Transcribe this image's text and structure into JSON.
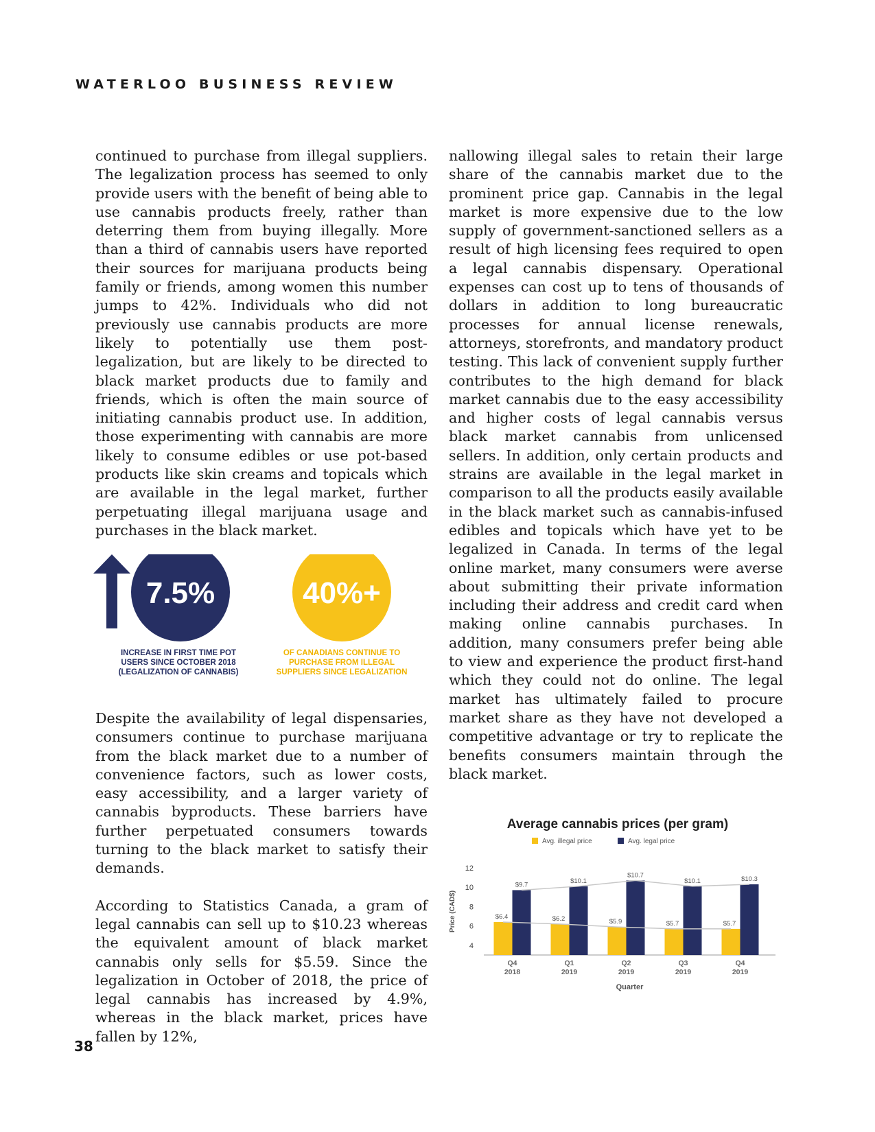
{
  "header": {
    "publication": "WATERLOO BUSINESS REVIEW"
  },
  "page_number": "38",
  "left_column_top": "continued to purchase from illegal suppliers. The legalization process has seemed to only provide users with the benefit of being able to use cannabis products freely, rather than deterring them from buying illegally. More than a third of cannabis users have reported their sources for marijuana products being family or friends, among women this number jumps to 42%. Individuals who did not previously use cannabis products are more likely to potentially use them post-legalization, but are likely to be directed to black market products due to family and friends, which is often the main source of initiating cannabis product use. In addition, those experimenting with cannabis are more likely to consume edibles or use pot-based products like skin creams and topicals which are available in the legal market, further perpetuating illegal marijuana usage and purchases in the black market.",
  "left_column_bottom": [
    "Despite the availability of legal dispensaries, consumers continue to purchase marijuana from the black market due to a number of convenience factors, such as lower costs, easy accessibility, and a larger variety of cannabis byproducts. These barriers have further perpetuated consumers towards turning to the black market to satisfy their demands.",
    "According to Statistics Canada, a gram of legal cannabis can sell up to $10.23 whereas the equivalent amount of black market cannabis only sells for $5.59. Since the legalization in October of 2018, the price of legal cannabis has increased by 4.9%, whereas in the black market, prices have fallen by 12%,"
  ],
  "right_column": "nallowing illegal sales to retain their large share of the cannabis market due to the prominent price gap. Cannabis in the legal market is more expensive due to the low supply of government-sanctioned sellers as a result of high licensing fees required to open a legal cannabis dispensary. Operational expenses can cost up to tens of thousands of dollars in addition to long bureaucratic processes for annual license renewals, attorneys, storefronts, and mandatory product testing. This lack of convenient supply further contributes to the high demand for black market cannabis due to the easy accessibility and higher costs of legal cannabis versus black market cannabis from unlicensed sellers. In addition, only certain products and strains are available in the legal market in comparison to all the products easily available in the black market such as cannabis-infused edibles and topicals which have yet to be legalized in Canada. In terms of the legal online market, many consumers were averse about submitting their private information including their address and credit card when making online cannabis purchases. In addition, many consumers prefer being able to view and experience the product first-hand which they could not do online. The legal market has ultimately failed to procure market share as they have not developed a competitive advantage or try to replicate the benefits consumers maintain through the black market.",
  "stats": [
    {
      "value": "7.5%",
      "caption_lines": [
        "INCREASE IN FIRST TIME POT",
        "USERS SINCE OCTOBER 2018",
        "(LEGALIZATION OF CANNABIS)"
      ],
      "color": "#262f63",
      "caption_color": "#262f63",
      "arrow": "up-arrow-icon"
    },
    {
      "value": "40%+",
      "caption_lines": [
        "OF CANADIANS CONTINUE TO",
        "PURCHASE FROM ILLEGAL",
        "SUPPLIERS SINCE LEGALIZATION"
      ],
      "color": "#f7c21a",
      "caption_color": "#f0b400"
    }
  ],
  "chart_data": {
    "type": "bar",
    "title": "Average cannabis prices (per gram)",
    "xlabel": "Quarter",
    "ylabel": "Price (CAD$)",
    "ylim": [
      3,
      12
    ],
    "yticks": [
      4,
      6,
      8,
      10,
      12
    ],
    "grid": false,
    "legend": "top-left",
    "categories": [
      [
        "Q4",
        "2018"
      ],
      [
        "Q1",
        "2019"
      ],
      [
        "Q2",
        "2019"
      ],
      [
        "Q3",
        "2019"
      ],
      [
        "Q4",
        "2019"
      ]
    ],
    "series": [
      {
        "name": "Avg. illegal price",
        "color": "#f7c21a",
        "values": [
          6.4,
          6.2,
          5.9,
          5.7,
          5.7
        ],
        "labels": [
          "$6.4",
          "$6.2",
          "$5.9",
          "$5.7",
          "$5.7"
        ]
      },
      {
        "name": "Avg. legal price",
        "color": "#262f63",
        "values": [
          9.7,
          10.1,
          10.7,
          10.1,
          10.3
        ],
        "labels": [
          "$9.7",
          "$10.1",
          "$10.7",
          "$10.1",
          "$10.3"
        ]
      }
    ]
  }
}
